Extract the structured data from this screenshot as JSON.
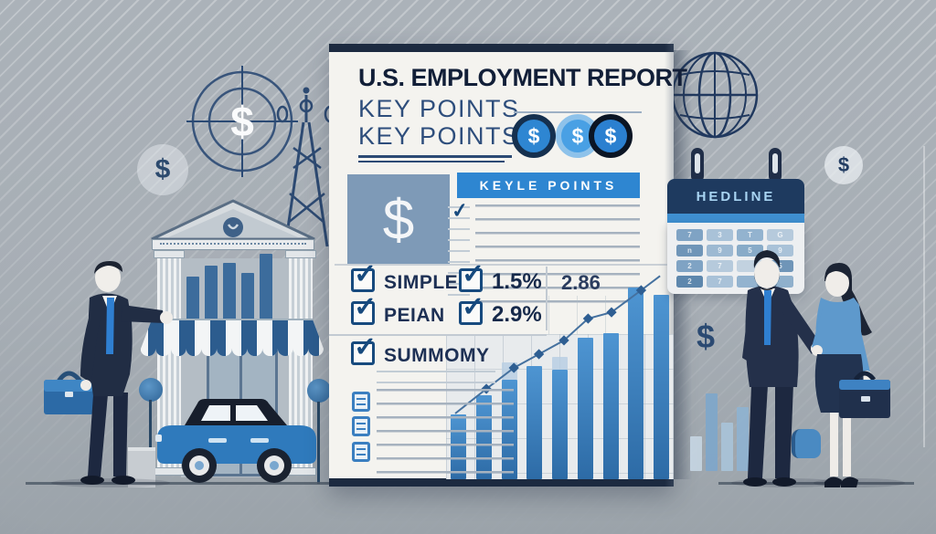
{
  "document": {
    "title": "U.S. EMPLOYMENT REPORT",
    "subtitle_line1": "KEY POINTS",
    "subtitle_line2": "KEY POINTS",
    "coins": [
      "$",
      "$",
      "$"
    ],
    "section_header": "KEYLE POINTS",
    "checklist": {
      "rows": [
        {
          "label": "SIMPLE",
          "value": "1.5%",
          "extra": "2.86"
        },
        {
          "label": "PEIAN",
          "value": "2.9%",
          "extra": ""
        },
        {
          "label": "SUMMOMY",
          "value": "",
          "extra": ""
        }
      ]
    }
  },
  "calendar": {
    "title": "HEDLINE",
    "cells": [
      "7",
      "3",
      "T",
      "G",
      "n",
      "9",
      "5",
      "9",
      "2",
      "7",
      "",
      "5",
      "2",
      "7",
      "",
      ""
    ],
    "cell_colors": [
      "#7fa3c4",
      "#a9c2d8",
      "#93b3cf",
      "#b6cadc",
      "#6f95b8",
      "#9db9d2",
      "#88abc8",
      "#a9c2d8",
      "#7fa3c4",
      "#b6cadc",
      "#c2d2e0",
      "#6f95b8",
      "#5d87ad",
      "#a9c2d8",
      "#93b3cf",
      "#8fb0cc"
    ]
  },
  "symbols": {
    "target_dollar": "$",
    "left_faint_dollar": "$",
    "right_small_dollar": "$",
    "mid_dollar": "$",
    "panel_dollar": "$"
  },
  "chart_data": [
    {
      "type": "bar",
      "title": "document growth chart (unlabeled, decorative)",
      "categories": [
        "1",
        "2",
        "3",
        "4",
        "5",
        "6",
        "7",
        "8",
        "9"
      ],
      "values": [
        34,
        44,
        52,
        59,
        57,
        74,
        76,
        100,
        96
      ],
      "ghost_extensions": [
        0,
        0,
        9,
        0,
        7,
        0,
        0,
        0,
        0
      ],
      "ylim": [
        0,
        100
      ],
      "grid": true,
      "axis_labels_visible": false,
      "bar_color": "#3e89cb",
      "line_overlay": {
        "line_start_pct": [
          4,
          68
        ],
        "marker_points_pct": [
          [
            17.7,
            56
          ],
          [
            29.8,
            45.8
          ],
          [
            40.8,
            39.1
          ],
          [
            51.8,
            32.4
          ],
          [
            62.4,
            21.8
          ],
          [
            72.7,
            18.7
          ],
          [
            85.7,
            8
          ]
        ],
        "line_end_pct": [
          94,
          1
        ],
        "line_color": "#45719f",
        "marker_color": "#2e5e92"
      }
    },
    {
      "type": "bar",
      "title": "bank storefront bars (decorative)",
      "values": [
        72,
        86,
        89,
        77,
        100
      ],
      "bar_color": "#3c6c9c"
    },
    {
      "type": "bar",
      "title": "faded bars near right figures (decorative)",
      "values": [
        45,
        100,
        62,
        82
      ],
      "bar_colors": [
        "#c6d6e3",
        "#7ea7cb",
        "#a9c4da",
        "#8fb3d2"
      ]
    }
  ],
  "colors": {
    "background": "#a7aeb5",
    "accent_blue": "#2e86d1",
    "navy": "#1c2a40",
    "document_bg": "#f4f3ef",
    "bar_blue": "#3e89cb",
    "suit_navy": "#212d44",
    "tie_blue": "#2f7fd1",
    "car_blue": "#2f7abc"
  }
}
